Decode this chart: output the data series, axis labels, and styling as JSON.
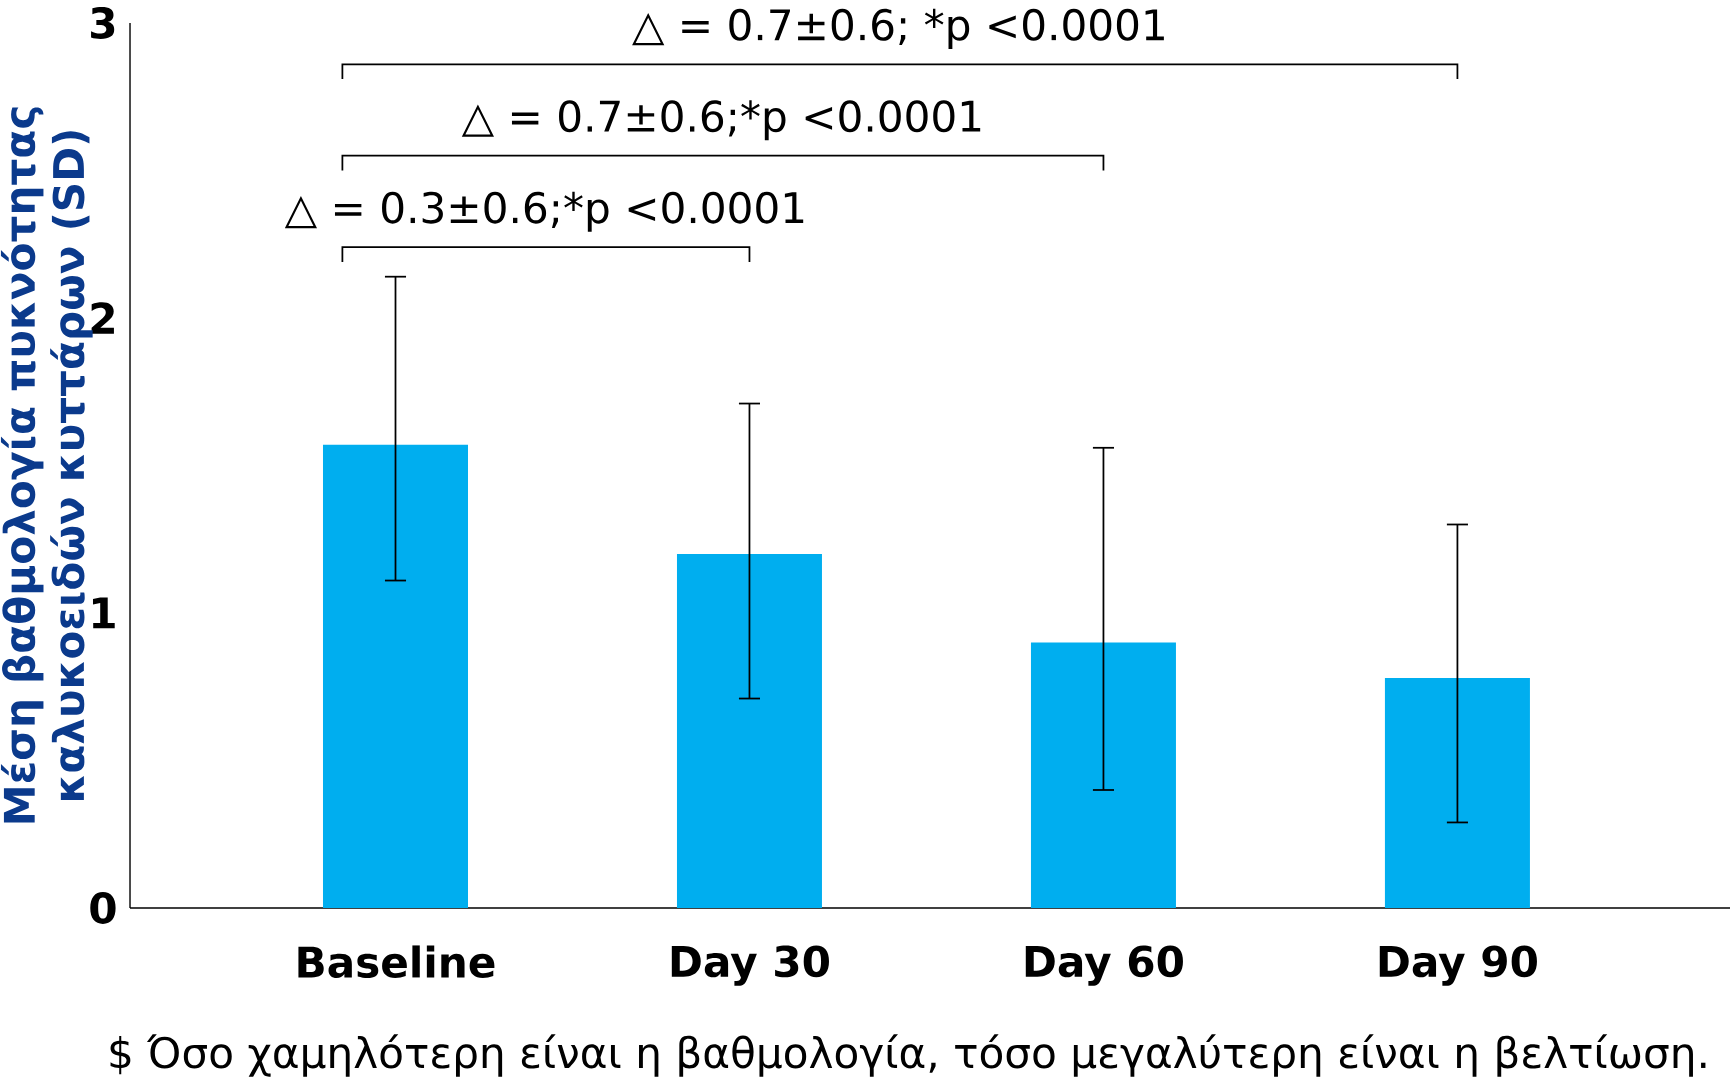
{
  "chart_data": {
    "type": "bar",
    "ylabel": "Μέση βαθμολογία πυκνότητας καλυκοειδών κυττάρων (SD)",
    "categories": [
      "Baseline",
      "Day 30",
      "Day 60",
      "Day 90"
    ],
    "values": [
      1.57,
      1.2,
      0.9,
      0.78
    ],
    "errors": [
      [
        1.11,
        2.14
      ],
      [
        0.71,
        1.71
      ],
      [
        0.4,
        1.56
      ],
      [
        0.29,
        1.3
      ]
    ],
    "color": "#00aeef",
    "ylim": [
      0,
      3
    ],
    "yticks": [
      0,
      1,
      2,
      3
    ],
    "grid": false,
    "annotations": [
      "△ = 0.3±0.6;*p <0.0001",
      "△ = 0.7±0.6;*p <0.0001",
      "△ = 0.7±0.6; *p <0.0001",
      "$ Όσο χαμηλότερη είναι η βαθμολογία, τόσο μεγαλύτερη είναι η βελτίωση."
    ]
  }
}
